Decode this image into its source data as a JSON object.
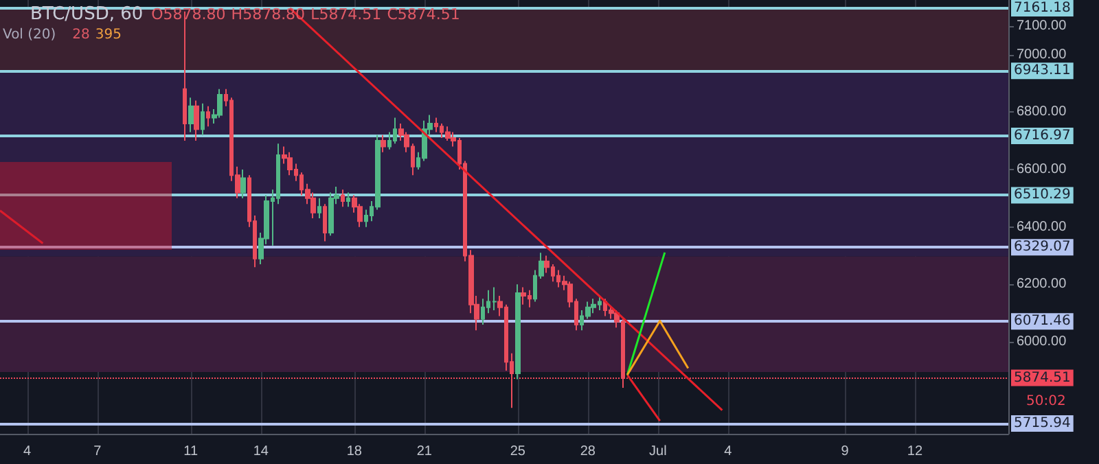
{
  "chart_data": {
    "type": "candlestick",
    "title": "BTC/USD, 60",
    "annotations": [
      "O5878.80",
      "H5878.80",
      "L5874.51",
      "C5874.51",
      "Vol (20)",
      "28",
      "395",
      "50:02"
    ],
    "xlim": [
      "--06-02T20:00",
      "--07-16T00:00"
    ],
    "xticks": [
      {
        "value": "--06-04",
        "label": "4"
      },
      {
        "value": "--06-07",
        "label": "7"
      },
      {
        "value": "--06-11",
        "label": "11"
      },
      {
        "value": "--06-14",
        "label": "14"
      },
      {
        "value": "--06-18",
        "label": "18"
      },
      {
        "value": "--06-21",
        "label": "21"
      },
      {
        "value": "--06-25",
        "label": "25"
      },
      {
        "value": "--06-28",
        "label": "28"
      },
      {
        "value": "--07-01",
        "label": "Jul"
      },
      {
        "value": "--07-04",
        "label": "4"
      },
      {
        "value": "--07-09",
        "label": "9"
      },
      {
        "value": "--07-12",
        "label": "12"
      }
    ],
    "ylim": [
      5680,
      7190
    ],
    "yticks": [
      {
        "value": 6000,
        "label": "6000.00"
      },
      {
        "value": 6200,
        "label": "6200.00"
      },
      {
        "value": 6400,
        "label": "6400.00"
      },
      {
        "value": 6600,
        "label": "6600.00"
      },
      {
        "value": 6800,
        "label": "6800.00"
      },
      {
        "value": 7000,
        "label": "7000.00"
      },
      {
        "value": 7100,
        "label": "7100.00"
      }
    ],
    "grid": true,
    "marker": "none",
    "series": [
      {
        "x": [
          "--06-10T18:00",
          "--06-11T00:00",
          "--06-11T06:00",
          "--06-11T12:00",
          "--06-11T18:00",
          "--06-12T00:00",
          "--06-12T06:00",
          "--06-12T12:00",
          "--06-12T18:00",
          "--06-13T00:00",
          "--06-13T06:00",
          "--06-13T12:00",
          "--06-13T18:00",
          "--06-14T00:00",
          "--06-14T06:00",
          "--06-14T12:00",
          "--06-14T18:00",
          "--06-15T00:00",
          "--06-15T06:00",
          "--06-15T12:00",
          "--06-15T18:00",
          "--06-16T00:00",
          "--06-16T06:00",
          "--06-16T12:00",
          "--06-16T18:00",
          "--06-17T00:00",
          "--06-17T06:00",
          "--06-17T12:00",
          "--06-17T18:00",
          "--06-18T00:00",
          "--06-18T06:00",
          "--06-18T12:00",
          "--06-18T18:00",
          "--06-19T00:00",
          "--06-19T06:00",
          "--06-19T12:00",
          "--06-19T18:00",
          "--06-20T00:00",
          "--06-20T06:00",
          "--06-20T12:00",
          "--06-20T18:00",
          "--06-21T00:00",
          "--06-21T06:00",
          "--06-21T12:00",
          "--06-21T18:00",
          "--06-22T00:00",
          "--06-22T06:00",
          "--06-22T12:00",
          "--06-22T18:00",
          "--06-23T00:00",
          "--06-23T06:00",
          "--06-23T12:00",
          "--06-23T18:00",
          "--06-24T00:00",
          "--06-24T06:00",
          "--06-24T12:00",
          "--06-24T18:00",
          "--06-25T00:00",
          "--06-25T06:00",
          "--06-25T12:00",
          "--06-25T18:00",
          "--06-26T00:00",
          "--06-26T06:00",
          "--06-26T12:00",
          "--06-26T18:00",
          "--06-27T00:00",
          "--06-27T06:00",
          "--06-27T12:00",
          "--06-27T18:00",
          "--06-28T00:00",
          "--06-28T06:00",
          "--06-28T12:00",
          "--06-28T18:00",
          "--06-29T00:00",
          "--06-29T06:00",
          "--06-29T12:00"
        ],
        "ohlc": [
          [
            6880,
            7150,
            6700,
            6760
          ],
          [
            6760,
            6850,
            6730,
            6820
          ],
          [
            6820,
            6840,
            6700,
            6740
          ],
          [
            6740,
            6830,
            6720,
            6800
          ],
          [
            6800,
            6820,
            6750,
            6780
          ],
          [
            6780,
            6810,
            6760,
            6790
          ],
          [
            6790,
            6880,
            6780,
            6860
          ],
          [
            6860,
            6880,
            6820,
            6840
          ],
          [
            6840,
            6850,
            6560,
            6580
          ],
          [
            6580,
            6610,
            6500,
            6520
          ],
          [
            6520,
            6600,
            6500,
            6570
          ],
          [
            6570,
            6580,
            6400,
            6420
          ],
          [
            6420,
            6440,
            6260,
            6290
          ],
          [
            6290,
            6380,
            6270,
            6360
          ],
          [
            6360,
            6510,
            6340,
            6490
          ],
          [
            6490,
            6530,
            6335,
            6500
          ],
          [
            6500,
            6690,
            6480,
            6650
          ],
          [
            6650,
            6680,
            6620,
            6640
          ],
          [
            6640,
            6660,
            6580,
            6600
          ],
          [
            6600,
            6620,
            6560,
            6580
          ],
          [
            6580,
            6590,
            6510,
            6530
          ],
          [
            6530,
            6550,
            6480,
            6500
          ],
          [
            6500,
            6520,
            6430,
            6450
          ],
          [
            6450,
            6500,
            6430,
            6470
          ],
          [
            6470,
            6480,
            6350,
            6380
          ],
          [
            6380,
            6520,
            6370,
            6500
          ],
          [
            6500,
            6540,
            6480,
            6510
          ],
          [
            6510,
            6530,
            6470,
            6490
          ],
          [
            6490,
            6520,
            6470,
            6500
          ],
          [
            6500,
            6510,
            6450,
            6470
          ],
          [
            6470,
            6480,
            6400,
            6420
          ],
          [
            6420,
            6460,
            6400,
            6440
          ],
          [
            6440,
            6490,
            6420,
            6470
          ],
          [
            6470,
            6720,
            6460,
            6700
          ],
          [
            6700,
            6720,
            6660,
            6680
          ],
          [
            6680,
            6730,
            6670,
            6700
          ],
          [
            6700,
            6780,
            6690,
            6740
          ],
          [
            6740,
            6760,
            6700,
            6720
          ],
          [
            6720,
            6730,
            6660,
            6680
          ],
          [
            6680,
            6690,
            6580,
            6610
          ],
          [
            6610,
            6660,
            6600,
            6640
          ],
          [
            6640,
            6770,
            6630,
            6740
          ],
          [
            6740,
            6790,
            6720,
            6760
          ],
          [
            6760,
            6780,
            6730,
            6750
          ],
          [
            6750,
            6760,
            6710,
            6730
          ],
          [
            6730,
            6750,
            6700,
            6710
          ],
          [
            6710,
            6730,
            6680,
            6700
          ],
          [
            6700,
            6710,
            6600,
            6620
          ],
          [
            6620,
            6630,
            6280,
            6300
          ],
          [
            6300,
            6320,
            6100,
            6130
          ],
          [
            6130,
            6160,
            6040,
            6080
          ],
          [
            6080,
            6150,
            6060,
            6120
          ],
          [
            6120,
            6180,
            6100,
            6140
          ],
          [
            6140,
            6190,
            6110,
            6140
          ],
          [
            6140,
            6160,
            6090,
            6120
          ],
          [
            6120,
            6130,
            5900,
            5930
          ],
          [
            5930,
            5960,
            5770,
            5890
          ],
          [
            5890,
            6200,
            5870,
            6170
          ],
          [
            6170,
            6190,
            6130,
            6160
          ],
          [
            6160,
            6180,
            6120,
            6150
          ],
          [
            6150,
            6250,
            6140,
            6230
          ],
          [
            6230,
            6310,
            6220,
            6280
          ],
          [
            6280,
            6300,
            6240,
            6260
          ],
          [
            6260,
            6270,
            6210,
            6230
          ],
          [
            6230,
            6250,
            6190,
            6210
          ],
          [
            6210,
            6230,
            6180,
            6200
          ],
          [
            6200,
            6210,
            6120,
            6140
          ],
          [
            6140,
            6150,
            6040,
            6060
          ],
          [
            6060,
            6110,
            6040,
            6090
          ],
          [
            6090,
            6140,
            6080,
            6120
          ],
          [
            6120,
            6150,
            6100,
            6130
          ],
          [
            6130,
            6160,
            6110,
            6140
          ],
          [
            6140,
            6150,
            6090,
            6110
          ],
          [
            6110,
            6120,
            6080,
            6100
          ],
          [
            6100,
            6110,
            6050,
            6070
          ],
          [
            6070,
            6080,
            5840,
            5874.51
          ]
        ]
      },
      {
        "type": "line",
        "color": "#e8202a",
        "x": [
          "--06-15T06:00",
          "--07-03T18:00"
        ],
        "values": [
          7161,
          5762
        ]
      },
      {
        "type": "line",
        "color": "#e8202a",
        "x": [
          "--06-29T16:30",
          "--07-01T02:00"
        ],
        "values": [
          5885,
          5725
        ]
      },
      {
        "type": "line",
        "color": "#1ee82a",
        "x": [
          "--06-29T16:30",
          "--07-01T07:00"
        ],
        "values": [
          5885,
          6311
        ]
      },
      {
        "type": "line",
        "color": "#f5a21e",
        "x": [
          "--06-29T16:30",
          "--07-01T02:00",
          "--07-02T07:00"
        ],
        "values": [
          5885,
          6073,
          5908
        ]
      },
      {
        "type": "line",
        "color": "#e8202a",
        "x": [
          "--06-02T20:00",
          "--06-04T16:00"
        ],
        "values": [
          6457,
          6343
        ]
      }
    ],
    "ref_lines": [
      {
        "axis": "y",
        "value": 7161.18,
        "label": "7161.18",
        "color": "#8fd3e0"
      },
      {
        "axis": "y",
        "value": 6943.11,
        "label": "6943.11",
        "color": "#8fd3e0"
      },
      {
        "axis": "y",
        "value": 6716.97,
        "label": "6716.97",
        "color": "#8fd3e0"
      },
      {
        "axis": "y",
        "value": 6510.29,
        "label": "6510.29",
        "color": "#8fd3e0"
      },
      {
        "axis": "y",
        "value": 6329.07,
        "label": "6329.07",
        "color": "#b4c4f0"
      },
      {
        "axis": "y",
        "value": 6071.46,
        "label": "6071.46",
        "color": "#b4c4f0"
      },
      {
        "axis": "y",
        "value": 5715.94,
        "label": "5715.94",
        "color": "#b4c4f0"
      },
      {
        "axis": "y",
        "value": 5874.51,
        "label": "5874.51",
        "color": "#f0475a",
        "line_style": "dotted"
      }
    ],
    "bands": [
      {
        "axis": "y",
        "from": 6943.11,
        "to": 7161.18,
        "color": "#3b2130"
      },
      {
        "axis": "y",
        "from": 6297,
        "to": 6943.11,
        "color": "#2b1e44"
      },
      {
        "axis": "y",
        "from": 5895,
        "to": 6297,
        "color": "#3a1d3b"
      }
    ]
  }
}
